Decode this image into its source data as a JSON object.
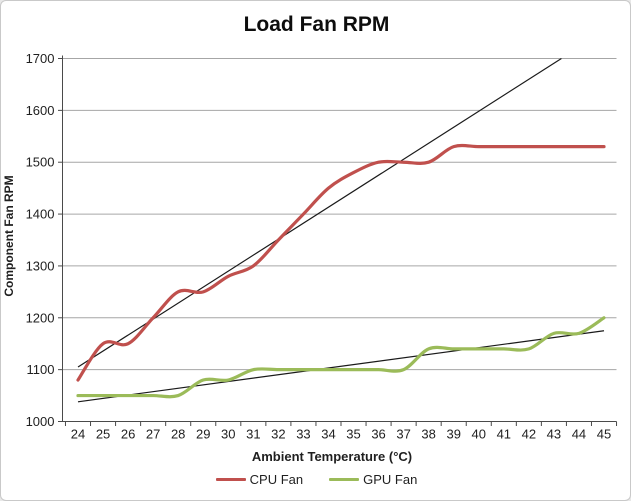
{
  "chart": {
    "title": "Load Fan RPM",
    "xlabel": "Ambient Temperature (°C)",
    "ylabel": "Component Fan RPM",
    "legend": {
      "position": "bottom",
      "items": [
        {
          "label": "CPU Fan",
          "color": "#C0504D"
        },
        {
          "label": "GPU Fan",
          "color": "#9BBB59"
        }
      ]
    }
  },
  "chart_data": {
    "type": "line",
    "title": "Load Fan RPM",
    "xlabel": "Ambient Temperature (°C)",
    "ylabel": "Component Fan RPM",
    "x": [
      24,
      25,
      26,
      27,
      28,
      29,
      30,
      31,
      32,
      33,
      34,
      35,
      36,
      37,
      38,
      39,
      40,
      41,
      42,
      43,
      44,
      45
    ],
    "series": [
      {
        "name": "CPU Fan",
        "color": "#C0504D",
        "smoothed": true,
        "values": [
          1080,
          1150,
          1150,
          1200,
          1250,
          1250,
          1280,
          1300,
          1350,
          1400,
          1450,
          1480,
          1500,
          1500,
          1500,
          1530,
          1530,
          1530,
          1530,
          1530,
          1530,
          1530
        ]
      },
      {
        "name": "GPU Fan",
        "color": "#9BBB59",
        "smoothed": true,
        "values": [
          1050,
          1050,
          1050,
          1050,
          1050,
          1080,
          1080,
          1100,
          1100,
          1100,
          1100,
          1100,
          1100,
          1100,
          1140,
          1140,
          1140,
          1140,
          1140,
          1170,
          1170,
          1200
        ]
      }
    ],
    "trendlines": [
      {
        "series": "CPU Fan",
        "x1": 24,
        "y1": 1105,
        "x2": 43.3,
        "y2": 1700
      },
      {
        "series": "GPU Fan",
        "x1": 24,
        "y1": 1038,
        "x2": 45,
        "y2": 1175
      }
    ],
    "ylim": [
      1000,
      1700
    ],
    "ytick_step": 100,
    "yticks": [
      1000,
      1100,
      1200,
      1300,
      1400,
      1500,
      1600,
      1700
    ],
    "xticks": [
      24,
      25,
      26,
      27,
      28,
      29,
      30,
      31,
      32,
      33,
      34,
      35,
      36,
      37,
      38,
      39,
      40,
      41,
      42,
      43,
      44,
      45
    ],
    "grid": true,
    "legend_position": "bottom"
  },
  "colors": {
    "background": "#FFFFFF",
    "border": "#C9C9C9",
    "gridline": "#A6A6A6",
    "axis": "#4A4A4A",
    "trendline": "#1A1A1A",
    "tick_text": "#1F1F1F",
    "title_text": "#0D0D0D"
  }
}
